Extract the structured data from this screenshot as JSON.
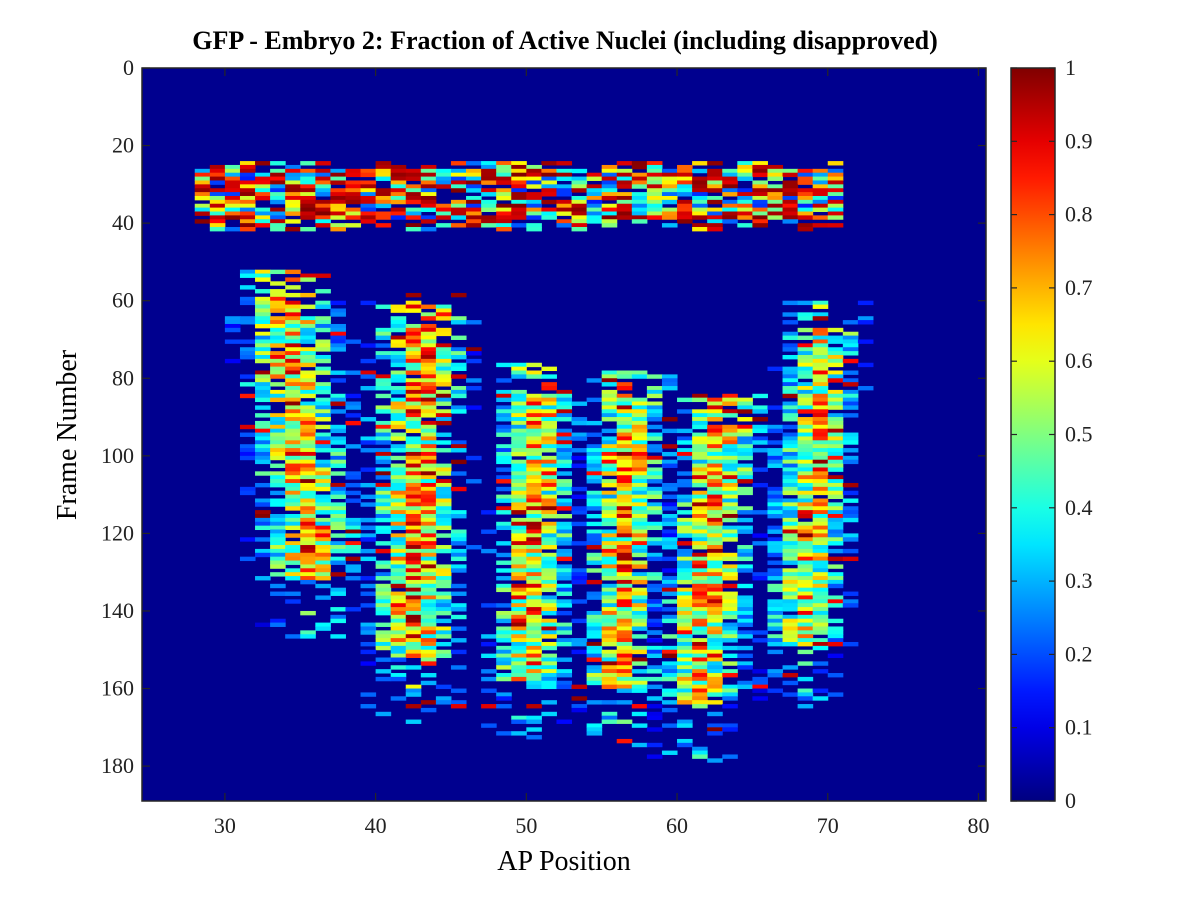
{
  "chart_data": {
    "type": "heatmap",
    "title": "GFP - Embryo 2: Fraction of Active Nuclei (including disapproved)",
    "xlabel": "AP Position",
    "ylabel": "Frame Number",
    "xlim": [
      24.5,
      80.5
    ],
    "ylim": [
      0,
      189
    ],
    "y_reversed": true,
    "xticks": [
      30,
      40,
      50,
      60,
      70,
      80
    ],
    "yticks": [
      0,
      20,
      40,
      60,
      80,
      100,
      120,
      140,
      160,
      180
    ],
    "colormap": "jet",
    "clim": [
      0,
      1
    ],
    "colorbar_ticks": [
      0,
      0.1,
      0.2,
      0.3,
      0.4,
      0.5,
      0.6,
      0.7,
      0.8,
      0.9,
      1
    ],
    "colorbar_ticklabels": [
      "0",
      "0.1",
      "0.2",
      "0.3",
      "0.4",
      "0.5",
      "0.6",
      "0.7",
      "0.8",
      "0.9",
      "1"
    ],
    "background_value": 0,
    "cell_size": {
      "ap": 1,
      "frame": 1
    },
    "bands": [
      {
        "name": "early-activity",
        "frames": [
          24,
          41
        ],
        "ap": [
          28,
          70
        ],
        "peak": 0.95,
        "spread": 1.0
      },
      {
        "name": "stripe-a",
        "frames": [
          52,
          146
        ],
        "ap_center_start": 33.5,
        "ap_center_end": 35.5,
        "width": 4.5,
        "peak": 0.85
      },
      {
        "name": "stripe-b",
        "frames": [
          58,
          168
        ],
        "ap_center_start": 42.5,
        "ap_center_end": 42.0,
        "width": 4.0,
        "peak": 0.9
      },
      {
        "name": "stripe-c",
        "frames": [
          76,
          172
        ],
        "ap_center_start": 50.5,
        "ap_center_end": 49.5,
        "width": 3.0,
        "peak": 0.85
      },
      {
        "name": "stripe-d",
        "frames": [
          78,
          174
        ],
        "ap_center_start": 56.5,
        "ap_center_end": 55.5,
        "width": 3.0,
        "peak": 0.85
      },
      {
        "name": "stripe-e",
        "frames": [
          84,
          178
        ],
        "ap_center_start": 62.5,
        "ap_center_end": 60.5,
        "width": 3.5,
        "peak": 0.85
      },
      {
        "name": "stripe-f",
        "frames": [
          60,
          164
        ],
        "ap_center_start": 69.5,
        "ap_center_end": 67.5,
        "width": 3.0,
        "peak": 0.8
      }
    ]
  }
}
